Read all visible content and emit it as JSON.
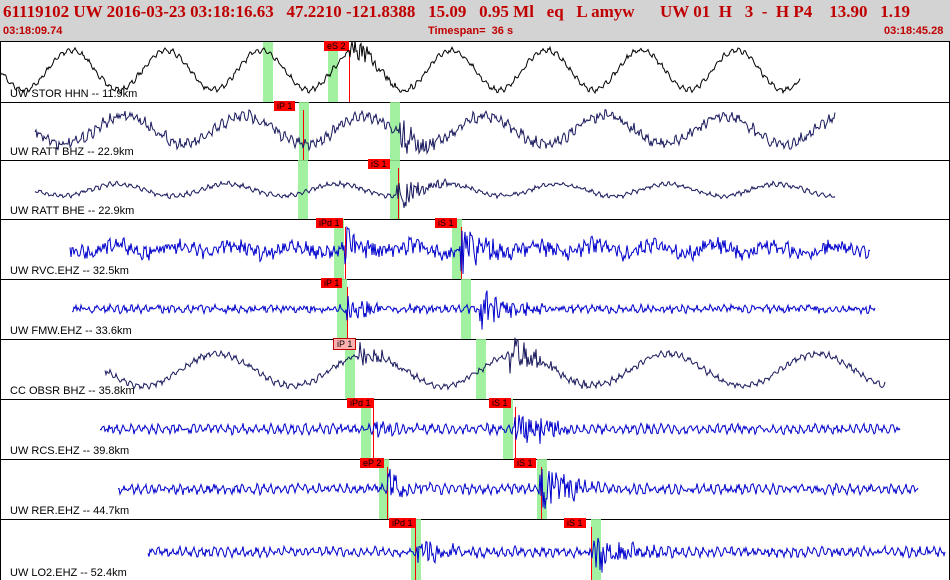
{
  "header": {
    "title": "61119102 UW 2016-03-23 03:18:16.63   47.2210 -121.8388   15.09   0.95 Ml   eq   L amyw      UW 01  H   3  -  H P4    13.90   1.19",
    "start_time": "03:18:09.74",
    "timespan": "Timespan=  36 s",
    "end_time": "03:18:45.28"
  },
  "traces": [
    {
      "label": "UW STOR HHN -- 11.9km",
      "color": "#000000",
      "picks": [
        {
          "text": "eS 2",
          "style": "red"
        }
      ]
    },
    {
      "label": "UW RATT BHZ -- 22.9km",
      "color": "#1a1a5e",
      "picks": [
        {
          "text": "iP 1",
          "style": "red"
        }
      ]
    },
    {
      "label": "UW RATT BHE -- 22.9km",
      "color": "#1a1a5e",
      "picks": [
        {
          "text": "iS 1",
          "style": "red"
        }
      ]
    },
    {
      "label": "UW RVC.EHZ -- 32.5km",
      "color": "#0000cc",
      "picks": [
        {
          "text": "iPd 1",
          "style": "red"
        },
        {
          "text": "iS 1",
          "style": "red"
        }
      ]
    },
    {
      "label": "UW FMW.EHZ -- 33.6km",
      "color": "#0000cc",
      "picks": [
        {
          "text": "iP 1",
          "style": "red"
        }
      ]
    },
    {
      "label": "CC OBSR BHZ -- 35.8km",
      "color": "#1a1a5e",
      "picks": [
        {
          "text": "iP 1",
          "style": "pink"
        }
      ]
    },
    {
      "label": "UW RCS.EHZ -- 39.8km",
      "color": "#0000cc",
      "picks": [
        {
          "text": "iPd 1",
          "style": "red"
        },
        {
          "text": "iS 1",
          "style": "red"
        }
      ]
    },
    {
      "label": "UW RER.EHZ -- 44.7km",
      "color": "#0000cc",
      "picks": [
        {
          "text": "eP 2",
          "style": "red"
        },
        {
          "text": "iS 1",
          "style": "red"
        }
      ]
    },
    {
      "label": "UW LO2.EHZ -- 52.4km",
      "color": "#0000cc",
      "picks": [
        {
          "text": "iPd 1",
          "style": "red"
        },
        {
          "text": "iS 1",
          "style": "red"
        }
      ]
    }
  ]
}
